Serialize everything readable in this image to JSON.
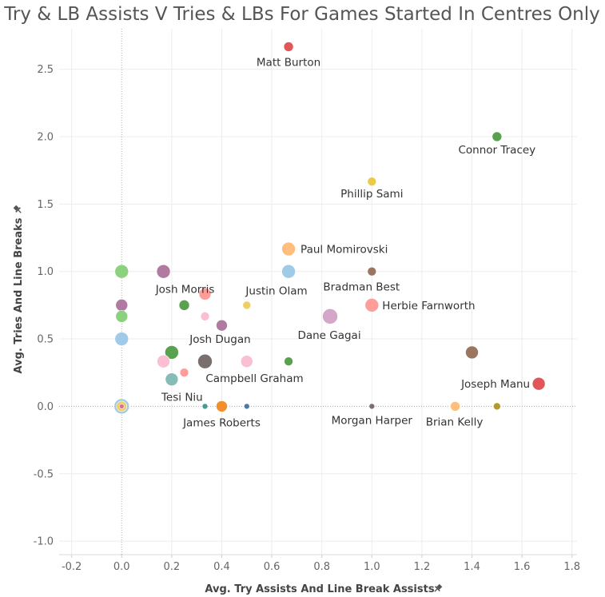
{
  "chart_data": {
    "type": "scatter",
    "title": "Try & LB Assists V Tries & LBs For Games Started In Centres Only",
    "xlabel": "Avg. Try Assists And Line Break Assists",
    "ylabel": "Avg. Tries And Line Breaks",
    "axis_sort_icon": "pin-icon",
    "xlim": [
      -0.25,
      1.82
    ],
    "ylim": [
      -1.1,
      2.8
    ],
    "xticks": [
      "-0.2",
      "0.0",
      "0.2",
      "0.4",
      "0.6",
      "0.8",
      "1.0",
      "1.2",
      "1.4",
      "1.6",
      "1.8"
    ],
    "xtick_values": [
      -0.2,
      0,
      0.2,
      0.4,
      0.6,
      0.8,
      1.0,
      1.2,
      1.4,
      1.6,
      1.8
    ],
    "yticks": [
      "-1.0",
      "-0.5",
      "0.0",
      "0.5",
      "1.0",
      "1.5",
      "2.0",
      "2.5"
    ],
    "ytick_values": [
      -1.0,
      -0.5,
      0,
      0.5,
      1.0,
      1.5,
      2.0,
      2.5
    ],
    "grid": true,
    "points": [
      {
        "x": 0.667,
        "y": 2.667,
        "size": 6,
        "color": "#e15759",
        "label": "Matt Burton"
      },
      {
        "x": 1.5,
        "y": 2.0,
        "size": 6,
        "color": "#59a14f",
        "label": "Connor Tracey"
      },
      {
        "x": 1.0,
        "y": 1.667,
        "size": 5.5,
        "color": "#edc948",
        "label": "Phillip Sami"
      },
      {
        "x": 0.667,
        "y": 1.167,
        "size": 8.5,
        "color": "#ffbe7d",
        "label": "Paul Momirovski"
      },
      {
        "x": 0.667,
        "y": 1.0,
        "size": 8.5,
        "color": "#a0cbe8",
        "label": "Justin Olam"
      },
      {
        "x": 1.0,
        "y": 1.0,
        "size": 5.5,
        "color": "#9c755f",
        "label": "Bradman Best"
      },
      {
        "x": 0.0,
        "y": 1.0,
        "size": 8.5,
        "color": "#8cd17d",
        "label": ""
      },
      {
        "x": 0.167,
        "y": 1.0,
        "size": 8.5,
        "color": "#b07aa1",
        "label": "Josh Morris"
      },
      {
        "x": 0.333,
        "y": 0.833,
        "size": 7.5,
        "color": "#ff9d9a",
        "label": ""
      },
      {
        "x": 0.5,
        "y": 0.75,
        "size": 5,
        "color": "#f1ce63",
        "label": ""
      },
      {
        "x": 0.25,
        "y": 0.75,
        "size": 6.5,
        "color": "#59a14f",
        "label": ""
      },
      {
        "x": 0.0,
        "y": 0.75,
        "size": 7.5,
        "color": "#b07aa1",
        "label": ""
      },
      {
        "x": 0.0,
        "y": 0.667,
        "size": 7.5,
        "color": "#8cd17d",
        "label": ""
      },
      {
        "x": 0.333,
        "y": 0.667,
        "size": 5.5,
        "color": "#fabfd2",
        "label": ""
      },
      {
        "x": 0.4,
        "y": 0.6,
        "size": 7,
        "color": "#b07aa1",
        "label": "Josh Dugan"
      },
      {
        "x": 1.0,
        "y": 0.75,
        "size": 8.5,
        "color": "#ff9d9a",
        "label": "Herbie Farnworth"
      },
      {
        "x": 0.833,
        "y": 0.667,
        "size": 9.5,
        "color": "#d4a6c8",
        "label": "Dane Gagai"
      },
      {
        "x": 0.0,
        "y": 0.5,
        "size": 8.5,
        "color": "#a0cbe8",
        "label": ""
      },
      {
        "x": 0.2,
        "y": 0.4,
        "size": 8.5,
        "color": "#59a14f",
        "label": ""
      },
      {
        "x": 0.167,
        "y": 0.333,
        "size": 8,
        "color": "#fabfd2",
        "label": ""
      },
      {
        "x": 0.333,
        "y": 0.333,
        "size": 9,
        "color": "#79706e",
        "label": "Campbell Graham"
      },
      {
        "x": 0.5,
        "y": 0.333,
        "size": 7.5,
        "color": "#fabfd2",
        "label": ""
      },
      {
        "x": 0.667,
        "y": 0.333,
        "size": 5.5,
        "color": "#59a14f",
        "label": ""
      },
      {
        "x": 1.4,
        "y": 0.4,
        "size": 8,
        "color": "#9c755f",
        "label": ""
      },
      {
        "x": 0.25,
        "y": 0.25,
        "size": 5.5,
        "color": "#ff9d9a",
        "label": ""
      },
      {
        "x": 0.2,
        "y": 0.2,
        "size": 8,
        "color": "#86bcb6",
        "label": "Tesi Niu"
      },
      {
        "x": 1.667,
        "y": 0.167,
        "size": 8,
        "color": "#e15759",
        "label": "Joseph Manu"
      },
      {
        "x": 0.0,
        "y": 0.0,
        "size": 9.5,
        "color": "#a0cbe8",
        "label": ""
      },
      {
        "x": 0.0,
        "y": 0.0,
        "size": 6.5,
        "color": "#f1ce63",
        "label": ""
      },
      {
        "x": 0.0,
        "y": 0.0,
        "size": 3,
        "color": "#d37295",
        "label": ""
      },
      {
        "x": 0.333,
        "y": 0.0,
        "size": 3.5,
        "color": "#499894",
        "label": ""
      },
      {
        "x": 0.4,
        "y": 0.0,
        "size": 7,
        "color": "#f28e2b",
        "label": "James Roberts"
      },
      {
        "x": 0.5,
        "y": 0.0,
        "size": 3.5,
        "color": "#4e79a7",
        "label": ""
      },
      {
        "x": 1.0,
        "y": 0.0,
        "size": 3.5,
        "color": "#79706e",
        "label": "Morgan Harper"
      },
      {
        "x": 1.333,
        "y": 0.0,
        "size": 6,
        "color": "#ffbe7d",
        "label": "Brian Kelly"
      },
      {
        "x": 1.5,
        "y": 0.0,
        "size": 4.5,
        "color": "#b6992d",
        "label": ""
      }
    ]
  }
}
